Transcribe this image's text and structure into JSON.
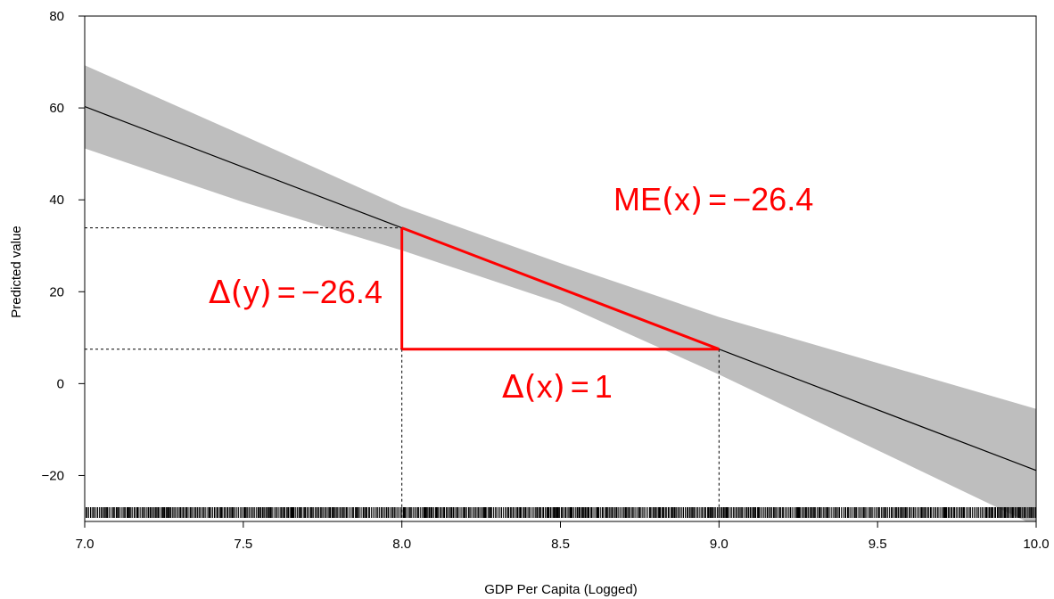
{
  "chart_data": {
    "type": "line",
    "xlabel": "GDP Per Capita (Logged)",
    "ylabel": "Predicted value",
    "xlim": [
      7.0,
      10.0
    ],
    "ylim": [
      -30,
      80
    ],
    "x_ticks": [
      7.0,
      7.5,
      8.0,
      8.5,
      9.0,
      9.5,
      10.0
    ],
    "x_tick_labels": [
      "7.0",
      "7.5",
      "8.0",
      "8.5",
      "9.0",
      "9.5",
      "10.0"
    ],
    "y_ticks": [
      -20,
      0,
      20,
      40,
      60,
      80
    ],
    "y_tick_labels": [
      "−20",
      "0",
      "20",
      "40",
      "60",
      "80"
    ],
    "grid": false,
    "series": [
      {
        "type": "line",
        "x": [
          7.0,
          10.0
        ],
        "y": [
          60.3,
          -18.9
        ],
        "color": "#000000"
      },
      {
        "type": "band",
        "x": [
          7.0,
          7.5,
          8.0,
          8.5,
          9.0,
          9.5,
          10.0
        ],
        "lower": [
          51.2,
          39.5,
          29.0,
          17.5,
          2.0,
          -14.5,
          -31.0
        ],
        "upper": [
          69.3,
          54.0,
          38.5,
          26.2,
          14.5,
          4.5,
          -5.5
        ],
        "color": "#bebebe"
      }
    ],
    "reference_lines": {
      "x1": 8.0,
      "y1": 33.9,
      "x2": 9.0,
      "y2": 7.5
    },
    "annotations": {
      "me_prefix": "ME",
      "me_arg": "x",
      "me_value": "−26.4",
      "dy_arg": "y",
      "dy_value": "−26.4",
      "dx_arg": "x",
      "dx_value": "1",
      "delta_symbol": "Δ",
      "equals": "=",
      "color": "#ff0000"
    },
    "rug": {
      "x_min": 7.0,
      "x_max": 10.0
    }
  }
}
